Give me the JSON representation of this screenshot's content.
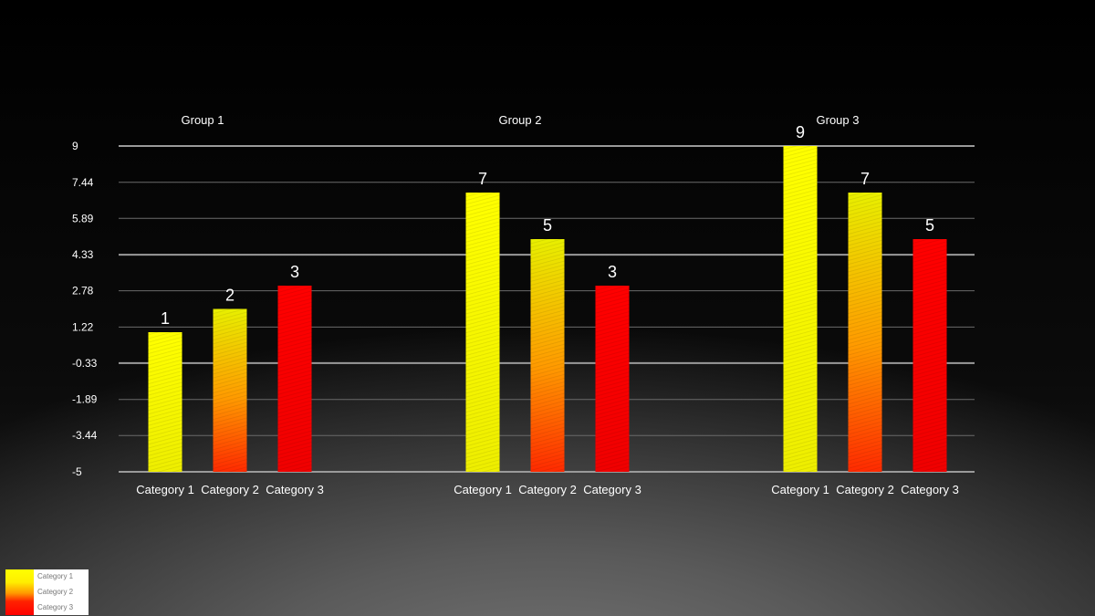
{
  "chart_data": {
    "type": "bar",
    "groups": [
      "Group 1",
      "Group 2",
      "Group 3"
    ],
    "categories": [
      "Category 1",
      "Category 2",
      "Category 3"
    ],
    "series": [
      {
        "name": "Category 1",
        "values": [
          1,
          7,
          9
        ]
      },
      {
        "name": "Category 2",
        "values": [
          2,
          5,
          7
        ]
      },
      {
        "name": "Category 3",
        "values": [
          3,
          3,
          5
        ]
      }
    ],
    "yticks": [
      "-5",
      "-3.44",
      "-1.89",
      "-0.33",
      "1.22",
      "2.78",
      "4.33",
      "5.89",
      "7.44",
      "9"
    ],
    "ylim": [
      -5,
      9
    ],
    "grid": true,
    "legend_position": "bottom-left",
    "data_labels": true,
    "colors": {
      "category_1": [
        "#ffff00",
        "#f0f000"
      ],
      "category_2": [
        "#e6e600",
        "#ff3300"
      ],
      "category_3": [
        "#ff0000",
        "#ee0000"
      ]
    }
  },
  "legend": {
    "items": [
      "Category 1",
      "Category 2",
      "Category 3"
    ]
  }
}
